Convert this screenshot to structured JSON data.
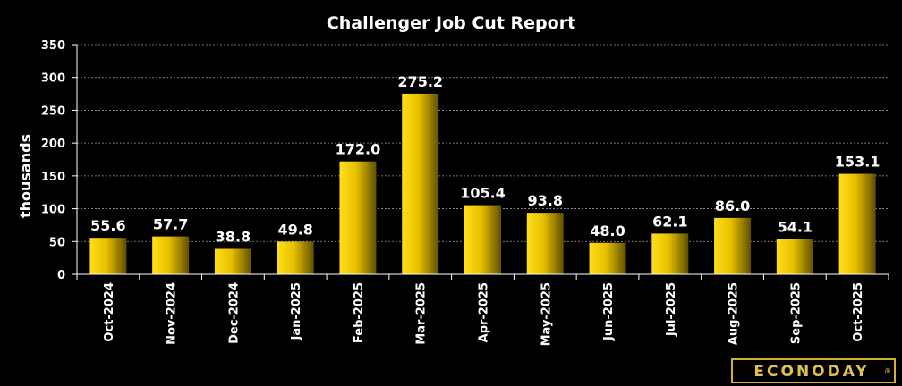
{
  "chart_data": {
    "type": "bar",
    "title": "Challenger Job Cut Report",
    "ylabel": "thousands",
    "xlabel": "",
    "categories": [
      "Oct-2024",
      "Nov-2024",
      "Dec-2024",
      "Jan-2025",
      "Feb-2025",
      "Mar-2025",
      "Apr-2025",
      "May-2025",
      "Jun-2025",
      "Jul-2025",
      "Aug-2025",
      "Sep-2025",
      "Oct-2025"
    ],
    "values": [
      55.6,
      57.7,
      38.8,
      49.8,
      172.0,
      275.2,
      105.4,
      93.8,
      48.0,
      62.1,
      86.0,
      54.1,
      153.1
    ],
    "value_labels": [
      "55.6",
      "57.7",
      "38.8",
      "49.8",
      "172.0",
      "275.2",
      "105.4",
      "93.8",
      "48.0",
      "62.1",
      "86.0",
      "54.1",
      "153.1"
    ],
    "ylim": [
      0,
      350
    ],
    "yticks": [
      "0",
      "50",
      "100",
      "150",
      "200",
      "250",
      "300",
      "350"
    ],
    "grid": true,
    "legend": "none",
    "colors": {
      "background": "#000000",
      "bar_light": "#f7d000",
      "bar_dark": "#6b5a00",
      "grid": "#9a9a9a",
      "text": "#ffffff"
    }
  },
  "branding": {
    "logo_text": "ECONODAY",
    "logo_mark": "®"
  }
}
